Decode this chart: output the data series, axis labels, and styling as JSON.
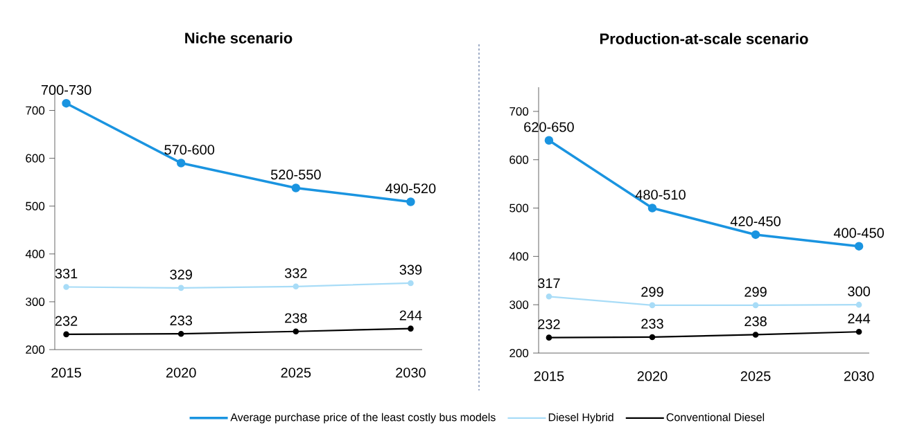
{
  "chart_data": [
    {
      "type": "line",
      "title": "Niche scenario",
      "x": [
        2015,
        2020,
        2025,
        2030
      ],
      "xlim": [
        2014.5,
        2030.5
      ],
      "xticks": [
        2015,
        2020,
        2025,
        2030
      ],
      "ylim": [
        200,
        750
      ],
      "yticks": [
        200,
        300,
        400,
        500,
        600,
        700
      ],
      "marker": "circle",
      "line_style": "solid",
      "legend": "bottom",
      "grid": false,
      "series": [
        {
          "name": "Average purchase price of the least costly bus models",
          "color": "#1a94e0",
          "values": [
            715,
            590,
            538,
            509
          ],
          "value_labels": [
            "700-730",
            "570-600",
            "520-550",
            "490-520"
          ]
        },
        {
          "name": "Diesel Hybrid",
          "color": "#a8dcf7",
          "values": [
            331,
            329,
            332,
            339
          ],
          "value_labels": [
            "331",
            "329",
            "332",
            "339"
          ]
        },
        {
          "name": "Conventional Diesel",
          "color": "#000000",
          "values": [
            232,
            233,
            238,
            244
          ],
          "value_labels": [
            "232",
            "233",
            "238",
            "244"
          ]
        }
      ]
    },
    {
      "type": "line",
      "title": "Production-at-scale scenario",
      "x": [
        2015,
        2020,
        2025,
        2030
      ],
      "xlim": [
        2014.5,
        2030.5
      ],
      "xticks": [
        2015,
        2020,
        2025,
        2030
      ],
      "ylim": [
        200,
        750
      ],
      "yticks": [
        200,
        300,
        400,
        500,
        600,
        700
      ],
      "marker": "circle",
      "line_style": "solid",
      "grid": false,
      "series": [
        {
          "color": "#1a94e0",
          "values": [
            640,
            500,
            445,
            421
          ],
          "value_labels": [
            "620-650",
            "480-510",
            "420-450",
            "400-450"
          ]
        },
        {
          "color": "#a8dcf7",
          "values": [
            317,
            299,
            299,
            300
          ],
          "value_labels": [
            "317",
            "299",
            "299",
            "300"
          ]
        },
        {
          "color": "#000000",
          "values": [
            232,
            233,
            238,
            244
          ],
          "value_labels": [
            "232",
            "233",
            "238",
            "244"
          ]
        }
      ]
    }
  ]
}
